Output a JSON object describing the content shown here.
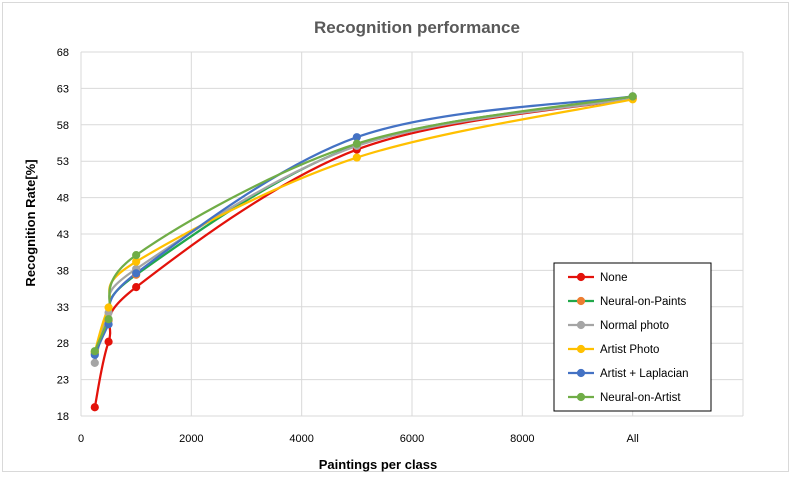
{
  "chart_data": {
    "type": "line",
    "title": "Recognition performance",
    "xlabel": "Paintings per class",
    "ylabel": "Recognition Rate[%]",
    "xlim": [
      0,
      12000
    ],
    "ylim": [
      18,
      68
    ],
    "x_ticks": [
      0,
      2000,
      4000,
      6000,
      8000,
      10000
    ],
    "x_tick_labels": [
      "0",
      "2000",
      "4000",
      "6000",
      "8000",
      "All"
    ],
    "y_ticks": [
      18,
      23,
      28,
      33,
      38,
      43,
      48,
      53,
      58,
      63,
      68
    ],
    "y_tick_labels": [
      "18",
      "23",
      "28",
      "33",
      "38",
      "43",
      "48",
      "53",
      "58",
      "63",
      "68"
    ],
    "grid": true,
    "legend_position": "bottom-right",
    "x": [
      250,
      500,
      1000,
      5000,
      10000
    ],
    "series": [
      {
        "name": "None",
        "values": [
          19.2,
          28.2,
          35.7,
          54.6,
          61.6
        ],
        "color": "#e3120b",
        "marker_color": "#e3120b"
      },
      {
        "name": "Neural-on-Paints",
        "values": [
          26.6,
          31.1,
          37.4,
          55.2,
          61.7
        ],
        "color": "#21a84a",
        "marker_color": "#ed7d31"
      },
      {
        "name": "Normal photo",
        "values": [
          25.3,
          32.2,
          38.2,
          55.1,
          61.6
        ],
        "color": "#a5a5a5",
        "marker_color": "#a5a5a5"
      },
      {
        "name": "Artist Photo",
        "values": [
          26.8,
          32.9,
          39.2,
          53.5,
          61.5
        ],
        "color": "#ffc000",
        "marker_color": "#ffc000"
      },
      {
        "name": "Artist + Laplacian",
        "values": [
          26.4,
          30.6,
          37.6,
          56.3,
          61.9
        ],
        "color": "#4472c4",
        "marker_color": "#4472c4"
      },
      {
        "name": "Neural-on-Artist",
        "values": [
          26.9,
          31.3,
          40.1,
          55.4,
          61.9
        ],
        "color": "#70ad47",
        "marker_color": "#70ad47"
      }
    ]
  }
}
